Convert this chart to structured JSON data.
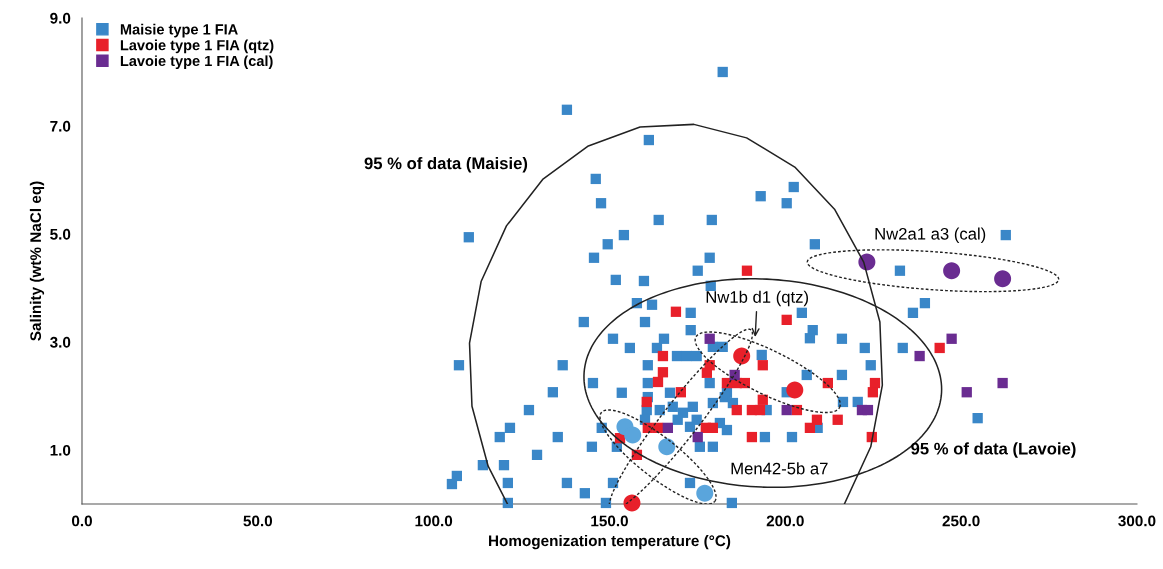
{
  "chart_data": {
    "type": "scatter",
    "xlabel": "Homogenization temperature (°C)",
    "ylabel": "Salinity (wt% NaCl eq)",
    "xlim": [
      0,
      300
    ],
    "ylim": [
      0,
      9
    ],
    "xticks": [
      {
        "value": 0,
        "label": "0.0"
      },
      {
        "value": 50,
        "label": "50.0"
      },
      {
        "value": 100,
        "label": "100.0"
      },
      {
        "value": 150,
        "label": "150.0"
      },
      {
        "value": 200,
        "label": "200.0"
      },
      {
        "value": 250,
        "label": "250.0"
      },
      {
        "value": 300,
        "label": "300.0"
      }
    ],
    "yticks": [
      {
        "value": 1,
        "label": "1.0"
      },
      {
        "value": 3,
        "label": "3.0"
      },
      {
        "value": 5,
        "label": "5.0"
      },
      {
        "value": 7,
        "label": "7.0"
      },
      {
        "value": 9,
        "label": "9.0"
      }
    ],
    "grid": false,
    "legend": "top left",
    "marker": "square",
    "series": [
      {
        "name": "Maisie type 1 FIA",
        "color": "#3a87c8",
        "x": [
          175.1,
          151.8,
          159.8,
          178.8,
          157.8,
          162.1,
          142.7,
          160.1,
          173.1,
          173.1,
          151.0,
          155.8,
          165.5,
          163.5,
          160.9,
          169.2,
          172.0,
          174.8,
          179.4,
          182.2,
          193.3,
          136.7,
          145.3,
          160.9,
          167.2,
          133.9,
          153.5,
          160.9,
          178.5,
          183.4,
          127.1,
          160.6,
          164.3,
          168.0,
          170.9,
          173.7,
          179.4,
          182.8,
          185.1,
          121.7,
          118.8,
          135.3,
          147.8,
          160.1,
          169.4,
          172.9,
          174.8,
          181.4,
          183.4,
          194.2,
          201.9,
          129.4,
          145.0,
          152.1,
          175.7,
          179.4,
          114.0,
          120.0,
          121.1,
          137.9,
          143.0,
          151.0,
          172.9,
          121.1,
          149.0,
          184.8,
          232.6,
          239.7,
          236.3,
          204.7,
          207.8,
          207.0,
          216.1,
          222.6,
          233.4,
          224.3,
          206.1,
          216.1,
          200.4,
          216.4,
          220.6,
          194.7,
          209.2,
          254.7,
          182.2,
          137.9,
          161.2,
          146.1,
          147.6,
          193.0,
          202.4,
          200.4,
          164.0,
          179.1,
          154.1,
          149.5,
          208.4,
          262.7,
          145.6,
          178.5,
          110.0,
          107.2,
          106.6,
          105.2
        ],
        "values": [
          4.32,
          4.15,
          4.13,
          4.04,
          3.72,
          3.69,
          3.37,
          3.37,
          3.54,
          3.22,
          3.06,
          2.89,
          3.06,
          2.89,
          2.57,
          2.74,
          2.74,
          2.74,
          2.91,
          2.91,
          2.76,
          2.57,
          2.24,
          2.24,
          2.06,
          2.07,
          2.06,
          1.98,
          2.24,
          2.06,
          1.74,
          1.74,
          1.74,
          1.8,
          1.69,
          1.8,
          1.87,
          1.98,
          1.87,
          1.41,
          1.24,
          1.24,
          1.41,
          1.56,
          1.56,
          1.43,
          1.56,
          1.5,
          1.37,
          1.24,
          1.24,
          0.91,
          1.06,
          1.06,
          1.06,
          1.06,
          0.72,
          0.72,
          0.39,
          0.39,
          0.2,
          0.39,
          0.39,
          0.02,
          0.02,
          0.02,
          4.32,
          3.72,
          3.54,
          3.54,
          3.22,
          3.07,
          3.06,
          2.89,
          2.89,
          2.57,
          2.39,
          2.39,
          2.07,
          1.89,
          1.89,
          1.74,
          1.41,
          1.59,
          8.0,
          7.3,
          6.74,
          6.02,
          5.57,
          5.7,
          5.87,
          5.57,
          5.26,
          5.26,
          4.98,
          4.81,
          4.81,
          4.98,
          4.56,
          4.56,
          4.94,
          2.57,
          0.52,
          0.37
        ]
      },
      {
        "name": "Lavoie type 1 FIA (qtz)",
        "color": "#e8202a",
        "x": [
          189.1,
          168.9,
          200.4,
          165.2,
          193.6,
          165.2,
          163.8,
          178.5,
          177.7,
          183.4,
          186.2,
          188.5,
          170.3,
          160.6,
          193.6,
          186.2,
          190.5,
          192.8,
          160.9,
          163.8,
          177.4,
          179.4,
          190.5,
          157.8,
          153.0,
          243.9,
          212.1,
          225.5,
          224.9,
          203.3,
          209.0,
          207.0,
          214.9,
          224.6
        ],
        "values": [
          4.32,
          3.56,
          3.41,
          2.74,
          2.57,
          2.44,
          2.26,
          2.57,
          2.43,
          2.24,
          2.24,
          2.24,
          2.07,
          1.89,
          1.93,
          1.74,
          1.74,
          1.74,
          1.41,
          1.41,
          1.41,
          1.41,
          1.24,
          0.91,
          1.22,
          2.89,
          2.24,
          2.24,
          2.07,
          1.74,
          1.56,
          1.41,
          1.56,
          1.24
        ]
      },
      {
        "name": "Lavoie type 1 FIA (cal)",
        "color": "#6a2c91",
        "x": [
          178.5,
          185.6,
          166.6,
          175.1,
          200.4,
          247.3,
          238.2,
          251.6,
          261.8,
          221.8,
          223.5
        ],
        "values": [
          3.06,
          2.39,
          1.41,
          1.24,
          1.74,
          3.06,
          2.74,
          2.07,
          2.24,
          1.74,
          1.74
        ]
      },
      {
        "color": "#5aa5dc",
        "marker": "circle",
        "x": [
          154.4,
          156.6,
          166.3,
          177.1
        ],
        "values": [
          1.43,
          1.28,
          1.06,
          0.2
        ]
      },
      {
        "color": "#e8202a",
        "marker": "circle",
        "x": [
          187.6,
          202.7,
          156.4
        ],
        "values": [
          2.74,
          2.11,
          0.02
        ]
      },
      {
        "color": "#6a2c91",
        "marker": "circle",
        "x": [
          223.2,
          247.3,
          261.8
        ],
        "values": [
          4.48,
          4.32,
          4.17
        ]
      },
      {
        "type": "line",
        "color": "#222222",
        "marker": "none",
        "x": [
          216.8,
          224.3,
          227.6,
          226.9,
          222.3,
          214.0,
          202.7,
          189.0,
          174.0,
          158.7,
          144.0,
          131.0,
          120.7,
          113.5,
          110.2,
          110.9,
          115.5,
          121.0
        ],
        "values": [
          0.0,
          1.06,
          2.2,
          3.37,
          4.48,
          5.46,
          6.24,
          6.78,
          7.03,
          6.98,
          6.63,
          6.01,
          5.15,
          4.12,
          2.98,
          1.81,
          0.7,
          0.0
        ]
      }
    ],
    "annotations": [
      "95 % of data (Maisie)",
      "95 % of data (Lavoie)",
      "Nw2a1 a3 (cal)",
      "Nw1b d1 (qtz)",
      "Men42-5b a7"
    ]
  }
}
